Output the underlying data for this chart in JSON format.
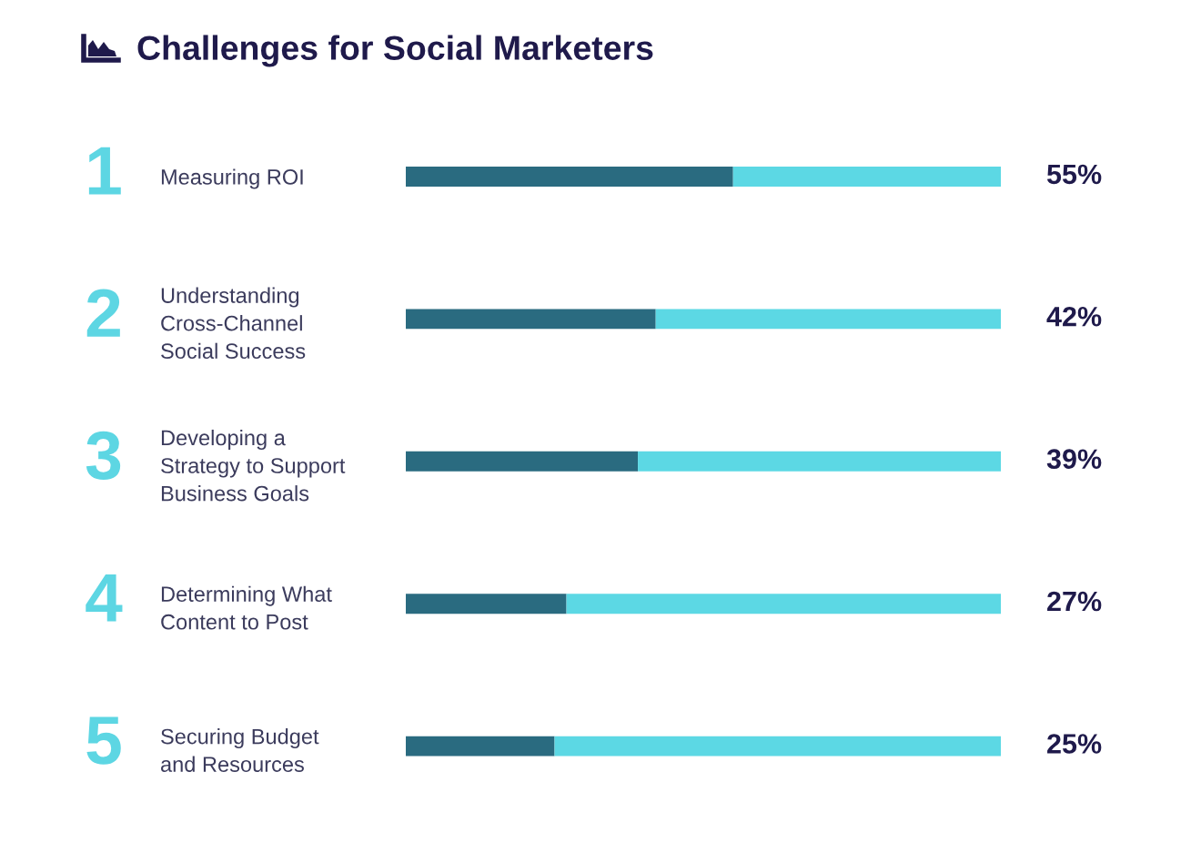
{
  "chart_data": {
    "type": "bar",
    "orientation": "horizontal",
    "stacked": true,
    "title": "Challenges for Social Marketers",
    "categories": [
      "Measuring ROI",
      "Understanding\nCross-Channel\nSocial Success",
      "Developing a\nStrategy to Support\nBusiness Goals",
      "Determining What\nContent to Post",
      "Securing Budget\nand Resources"
    ],
    "series": [
      {
        "color": "#2a6b80",
        "values": [
          55,
          42,
          39,
          27,
          25
        ],
        "value_labels": [
          "55%",
          "42%",
          "39%",
          "27%",
          "25%"
        ]
      },
      {
        "color": "#5cd8e4",
        "values": [
          45,
          58,
          61,
          73,
          75
        ]
      }
    ],
    "xlim": [
      0,
      100
    ],
    "tick_labels": "y",
    "annotations": [
      "1",
      "2",
      "3",
      "4",
      "5"
    ]
  }
}
